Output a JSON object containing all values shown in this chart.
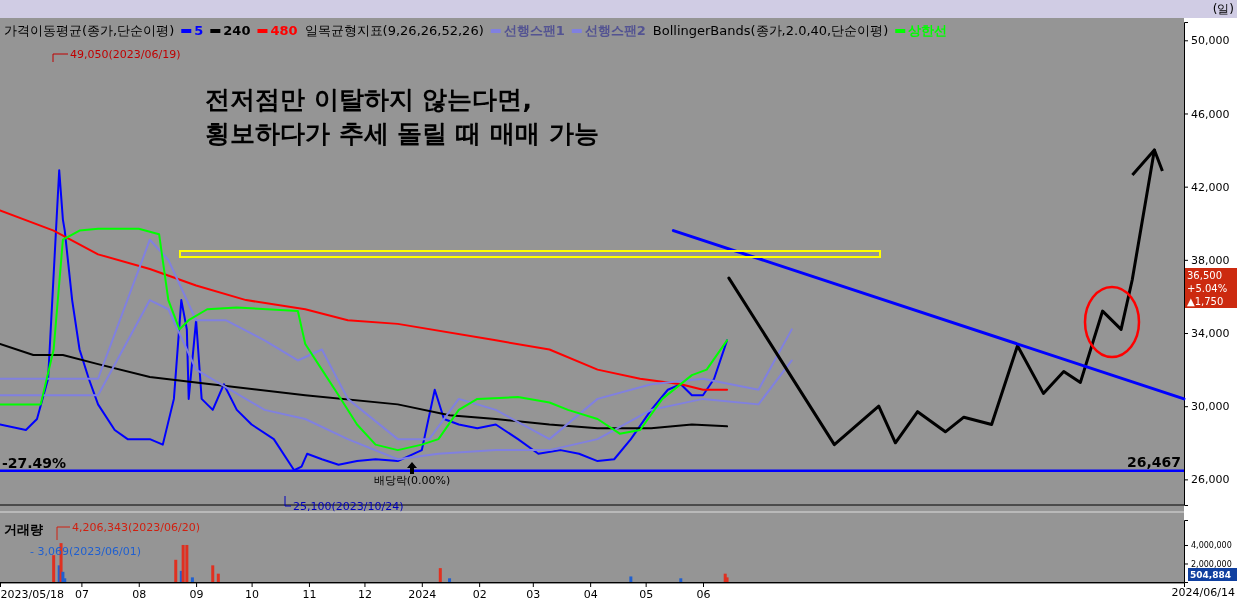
{
  "chart_data": [
    {
      "type": "line",
      "legend": "top",
      "tick_labels": "y",
      "grid": false,
      "xlim": [
        "2023-05-18",
        "2025-02-16"
      ],
      "ylim": [
        24600,
        51000
      ],
      "yticks": [
        {
          "value": 26000,
          "label": "26,000"
        },
        {
          "value": 30000,
          "label": "30,000"
        },
        {
          "value": 34000,
          "label": "34,000"
        },
        {
          "value": 38000,
          "label": "38,000"
        },
        {
          "value": 42000,
          "label": "42,000"
        },
        {
          "value": 46000,
          "label": "46,000"
        },
        {
          "value": 50000,
          "label": "50,000"
        }
      ],
      "series": [
        {
          "name": "5",
          "color": "#0000ff",
          "x": [
            "2023-05-18",
            "2023-06-01",
            "2023-06-07",
            "2023-06-13",
            "2023-06-19",
            "2023-06-21",
            "2023-06-22",
            "2023-06-26",
            "2023-06-30",
            "2023-07-05",
            "2023-07-10",
            "2023-07-19",
            "2023-07-26",
            "2023-08-07",
            "2023-08-14",
            "2023-08-20",
            "2023-08-24",
            "2023-08-27",
            "2023-08-28",
            "2023-09-01",
            "2023-09-04",
            "2023-09-10",
            "2023-09-16",
            "2023-09-23",
            "2023-10-01",
            "2023-10-13",
            "2023-10-24",
            "2023-10-28",
            "2023-10-31",
            "2023-11-08",
            "2023-11-17",
            "2023-11-27",
            "2023-12-07",
            "2023-12-19",
            "2024-01-01",
            "2024-01-08",
            "2024-01-13",
            "2024-01-21",
            "2024-01-31",
            "2024-02-10",
            "2024-02-22",
            "2024-03-04",
            "2024-03-16",
            "2024-03-26",
            "2024-04-05",
            "2024-04-14",
            "2024-04-23",
            "2024-05-04",
            "2024-05-13",
            "2024-05-20",
            "2024-05-26",
            "2024-06-01",
            "2024-06-07",
            "2024-06-14"
          ],
          "values": [
            29000,
            28700,
            29300,
            31500,
            42900,
            40200,
            39600,
            35800,
            33100,
            31500,
            30100,
            28700,
            28200,
            28200,
            27900,
            30400,
            35800,
            34200,
            30400,
            34700,
            30400,
            29800,
            31200,
            29800,
            29000,
            28200,
            26500,
            26700,
            27400,
            27100,
            26800,
            27000,
            27100,
            27000,
            27600,
            30900,
            29300,
            29000,
            28800,
            29000,
            28200,
            27400,
            27600,
            27400,
            27000,
            27100,
            28200,
            29800,
            30900,
            31200,
            30600,
            30600,
            31500,
            33600
          ]
        },
        {
          "name": "240",
          "color": "#000000",
          "x": [
            "2023-05-18",
            "2023-06-05",
            "2023-06-21",
            "2023-07-10",
            "2023-08-07",
            "2023-09-01",
            "2023-10-30",
            "2023-12-19",
            "2024-01-16",
            "2024-02-10",
            "2024-03-10",
            "2024-04-05",
            "2024-05-04",
            "2024-05-26",
            "2024-06-14"
          ],
          "values": [
            33400,
            32800,
            32800,
            32300,
            31600,
            31300,
            30600,
            30100,
            29500,
            29300,
            29000,
            28800,
            28800,
            29000,
            28900
          ]
        },
        {
          "name": "480",
          "color": "#ff0000",
          "x": [
            "2023-05-18",
            "2023-06-16",
            "2023-07-10",
            "2023-08-07",
            "2023-09-01",
            "2023-09-28",
            "2023-10-30",
            "2023-11-22",
            "2023-12-19",
            "2024-02-10",
            "2024-03-10",
            "2024-04-05",
            "2024-04-28",
            "2024-05-20",
            "2024-06-01",
            "2024-06-14"
          ],
          "values": [
            40700,
            39600,
            38300,
            37500,
            36600,
            35800,
            35300,
            34700,
            34500,
            33600,
            33100,
            32000,
            31500,
            31200,
            30900,
            30900
          ]
        },
        {
          "name": "선행스팬1",
          "color": "#8080e0",
          "x": [
            "2023-05-18",
            "2023-06-16",
            "2023-07-10",
            "2023-08-07",
            "2023-08-17",
            "2023-09-01",
            "2023-09-17",
            "2023-10-08",
            "2023-10-26",
            "2023-11-08",
            "2023-11-22",
            "2023-12-19",
            "2024-01-05",
            "2024-01-21",
            "2024-02-10",
            "2024-03-10",
            "2024-04-05",
            "2024-05-04",
            "2024-06-01",
            "2024-07-01",
            "2024-07-19"
          ],
          "values": [
            31500,
            31500,
            31500,
            39100,
            38000,
            34700,
            34700,
            33600,
            32500,
            33100,
            30400,
            28200,
            28200,
            30400,
            29800,
            28200,
            30400,
            31200,
            31500,
            30900,
            34200
          ]
        },
        {
          "name": "선행스팬2",
          "color": "#8080e0",
          "x": [
            "2023-05-18",
            "2023-06-16",
            "2023-07-10",
            "2023-08-07",
            "2023-08-17",
            "2023-09-01",
            "2023-10-08",
            "2023-10-30",
            "2023-11-22",
            "2023-12-19",
            "2024-01-10",
            "2024-02-10",
            "2024-03-10",
            "2024-04-05",
            "2024-05-04",
            "2024-06-01",
            "2024-07-01",
            "2024-07-19"
          ],
          "values": [
            30600,
            30600,
            30600,
            35800,
            35300,
            32000,
            29800,
            29300,
            28200,
            27100,
            27400,
            27600,
            27600,
            28200,
            29800,
            30400,
            30100,
            32500
          ]
        },
        {
          "name": "상한선",
          "color": "#00ff00",
          "x": [
            "2023-05-18",
            "2023-06-09",
            "2023-06-16",
            "2023-06-21",
            "2023-06-30",
            "2023-07-10",
            "2023-08-01",
            "2023-08-12",
            "2023-08-17",
            "2023-08-23",
            "2023-08-28",
            "2023-09-07",
            "2023-09-23",
            "2023-10-26",
            "2023-10-30",
            "2023-11-08",
            "2023-11-17",
            "2023-11-27",
            "2023-12-07",
            "2023-12-19",
            "2024-01-01",
            "2024-01-10",
            "2024-01-21",
            "2024-01-31",
            "2024-02-22",
            "2024-03-10",
            "2024-03-20",
            "2024-04-05",
            "2024-04-17",
            "2024-04-28",
            "2024-05-10",
            "2024-05-26",
            "2024-06-03",
            "2024-06-14"
          ],
          "values": [
            30100,
            30100,
            33100,
            39100,
            39600,
            39700,
            39700,
            39400,
            35800,
            34200,
            34700,
            35300,
            35400,
            35200,
            33400,
            32000,
            30600,
            29000,
            27900,
            27600,
            27900,
            28200,
            29800,
            30400,
            30500,
            30200,
            29800,
            29300,
            28500,
            28700,
            30400,
            31700,
            32000,
            33600
          ]
        },
        {
          "color": "#000000",
          "x": [
            "2024-06-15",
            "2024-08-11",
            "2024-09-04",
            "2024-09-13",
            "2024-09-25",
            "2024-10-10",
            "2024-10-20",
            "2024-11-04",
            "2024-11-18",
            "2024-12-02",
            "2024-12-13",
            "2024-12-22",
            "2025-01-03",
            "2025-01-13",
            "2025-01-19",
            "2025-01-31"
          ],
          "values": [
            37000,
            27900,
            30000,
            28000,
            29700,
            28600,
            29400,
            29000,
            33300,
            30700,
            31900,
            31300,
            35200,
            34200,
            36900,
            44000
          ]
        },
        {
          "color": "#0000ff",
          "x": [
            "2024-05-16",
            "2025-02-16"
          ],
          "values": [
            39600,
            30400
          ]
        }
      ],
      "ref_lines": [
        {
          "axis": "y",
          "value": 26467,
          "label": "26,467",
          "color": "#0000ff"
        }
      ],
      "annotations": [
        "가격이동평균(종가,단순이평)",
        "일목균형지표(9,26,26,52,26)",
        "BollingerBands(종가,2.0,40,단순이평)",
        "전저점만 이탈하지 않는다면,\n횡보하다가 추세 돌릴 때 매매 가능",
        "-27.49%",
        "(일)",
        "49,050(2023/06/19)",
        "25,100(2023/10/24)",
        "배당락(0.00%)",
        "36,500 +5.04% ▲1,750"
      ]
    },
    {
      "type": "bar",
      "title": "거래량",
      "grid": false,
      "xlim": [
        "2023-05-18",
        "2025-02-16"
      ],
      "xticks": [
        {
          "value": "2023-05-18",
          "label": "2023/05/18"
        },
        {
          "value": "2023-07-01",
          "label": "07"
        },
        {
          "value": "2023-08-01",
          "label": "08"
        },
        {
          "value": "2023-09-01",
          "label": "09"
        },
        {
          "value": "2023-10-01",
          "label": "10"
        },
        {
          "value": "2023-11-01",
          "label": "11"
        },
        {
          "value": "2023-12-01",
          "label": "12"
        },
        {
          "value": "2024-01-01",
          "label": "2024"
        },
        {
          "value": "2024-02-01",
          "label": "02"
        },
        {
          "value": "2024-03-01",
          "label": "03"
        },
        {
          "value": "2024-04-01",
          "label": "04"
        },
        {
          "value": "2024-05-01",
          "label": "05"
        },
        {
          "value": "2024-06-01",
          "label": "06"
        }
      ],
      "ylim": [
        0,
        6700000
      ],
      "yticks": [
        {
          "value": 2000000,
          "label": "2,000,000"
        },
        {
          "value": 4000000,
          "label": "4,000,000"
        }
      ],
      "x": [
        "2023-06-16",
        "2023-06-19",
        "2023-06-20",
        "2023-06-21",
        "2023-06-22",
        "2023-08-21",
        "2023-08-24",
        "2023-08-25",
        "2023-08-27",
        "2023-08-30",
        "2023-09-10",
        "2023-09-13",
        "2024-01-11",
        "2024-01-16",
        "2024-04-23",
        "2024-05-20",
        "2024-06-13",
        "2024-06-14"
      ],
      "values": [
        2900000,
        1800000,
        4200000,
        1100000,
        400000,
        2400000,
        1200000,
        4000000,
        4000000,
        500000,
        1800000,
        900000,
        1500000,
        400000,
        600000,
        400000,
        900000,
        500000
      ],
      "colors": [
        "#e03020",
        "#2060d0",
        "#e03020",
        "#2060d0",
        "#2060d0",
        "#e03020",
        "#2060d0",
        "#e03020",
        "#e03020",
        "#2060d0",
        "#e03020",
        "#e03020",
        "#e03020",
        "#2060d0",
        "#2060d0",
        "#2060d0",
        "#e03020",
        "#e03020"
      ],
      "annotations": [
        "4,206,343(2023/06/20)",
        "- 3,069(2023/06/01)",
        "504,884",
        "2024/06/14"
      ]
    }
  ]
}
